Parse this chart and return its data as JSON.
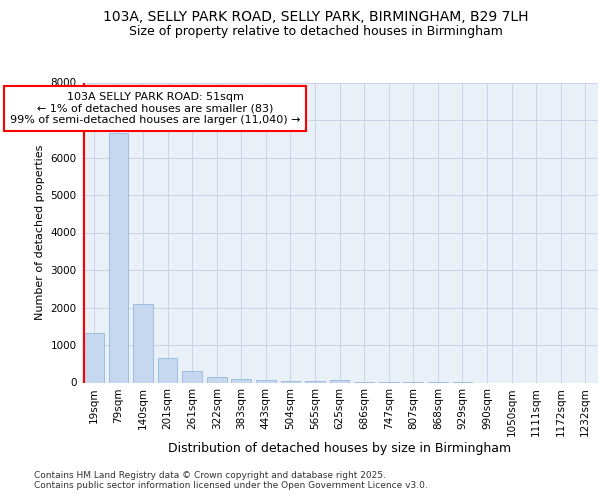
{
  "title1": "103A, SELLY PARK ROAD, SELLY PARK, BIRMINGHAM, B29 7LH",
  "title2": "Size of property relative to detached houses in Birmingham",
  "xlabel": "Distribution of detached houses by size in Birmingham",
  "ylabel": "Number of detached properties",
  "categories": [
    "19sqm",
    "79sqm",
    "140sqm",
    "201sqm",
    "261sqm",
    "322sqm",
    "383sqm",
    "443sqm",
    "504sqm",
    "565sqm",
    "625sqm",
    "686sqm",
    "747sqm",
    "807sqm",
    "868sqm",
    "929sqm",
    "990sqm",
    "1050sqm",
    "1111sqm",
    "1172sqm",
    "1232sqm"
  ],
  "values": [
    1330,
    6650,
    2090,
    645,
    305,
    150,
    100,
    60,
    40,
    30,
    75,
    5,
    3,
    2,
    1,
    1,
    0,
    0,
    0,
    0,
    0
  ],
  "bar_color": "#c5d8ef",
  "bar_edge_color": "#88afd4",
  "annotation_text": "103A SELLY PARK ROAD: 51sqm\n← 1% of detached houses are smaller (83)\n99% of semi-detached houses are larger (11,040) →",
  "footer": "Contains HM Land Registry data © Crown copyright and database right 2025.\nContains public sector information licensed under the Open Government Licence v3.0.",
  "ylim": [
    0,
    8000
  ],
  "yticks": [
    0,
    1000,
    2000,
    3000,
    4000,
    5000,
    6000,
    7000,
    8000
  ],
  "grid_color": "#c8d4e8",
  "background_color": "#eaf0f8",
  "title_fontsize": 10,
  "subtitle_fontsize": 9,
  "ylabel_fontsize": 8,
  "xlabel_fontsize": 9,
  "tick_fontsize": 7.5,
  "annotation_fontsize": 8,
  "footer_fontsize": 6.5
}
